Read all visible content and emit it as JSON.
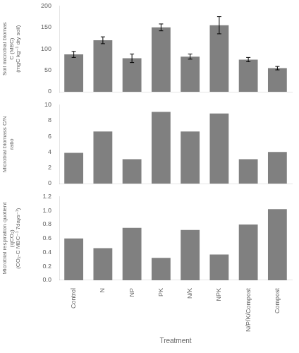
{
  "chart_data": [
    {
      "type": "bar",
      "categories": [
        "Control",
        "N",
        "NP",
        "PK",
        "N/K",
        "NPK",
        "N/P/K/Compost",
        "Compost"
      ],
      "values": [
        87,
        120,
        78,
        150,
        82,
        155,
        75,
        55
      ],
      "errors": [
        7,
        8,
        10,
        8,
        6,
        20,
        5,
        4
      ],
      "color": "#808080",
      "ylabel": "Soil microbial biomas\nC (MBC)\n(mgC kg⁻¹ dry soil)",
      "ylim": [
        0,
        200
      ],
      "yticks": [
        0,
        50,
        100,
        150,
        200
      ],
      "grid": false,
      "tick_labels": "y"
    },
    {
      "type": "bar",
      "categories": [
        "Control",
        "N",
        "NP",
        "PK",
        "N/K",
        "NPK",
        "N/P/K/Compost",
        "Compost"
      ],
      "values": [
        3.9,
        6.6,
        3.1,
        9.1,
        6.6,
        8.9,
        3.1,
        4.0
      ],
      "color": "#808080",
      "ylabel": "Microbial biomass C/N\nratio",
      "ylim": [
        0,
        10
      ],
      "yticks": [
        0,
        2,
        4,
        6,
        8,
        10
      ],
      "grid": false,
      "tick_labels": "y"
    },
    {
      "type": "bar",
      "categories": [
        "Control",
        "N",
        "NP",
        "PK",
        "N/K",
        "NPK",
        "N/P/K/Compost",
        "Compost"
      ],
      "values": [
        0.6,
        0.46,
        0.75,
        0.32,
        0.72,
        0.37,
        0.8,
        1.02
      ],
      "color": "#808080",
      "ylabel": "Microbial respiration quotient\n(qCO₂)\n(CO₂-C MBC⁻¹ 7days⁻¹)",
      "xlabel": "Treatment",
      "ylim": [
        0,
        1.2
      ],
      "yticks": [
        {
          "value": 0,
          "label": "0.0"
        },
        0.2,
        0.4,
        0.6,
        0.8,
        {
          "value": 1.0,
          "label": "1.0"
        },
        1.2
      ],
      "grid": false
    }
  ]
}
